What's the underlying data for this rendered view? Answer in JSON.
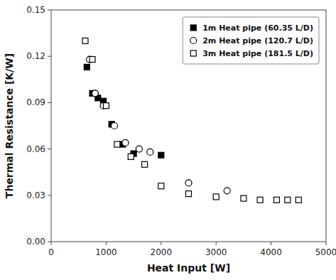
{
  "chart_data": {
    "type": "scatter",
    "xlabel": "Heat Input [W]",
    "ylabel": "Thermal Resistance [K/W]",
    "xlim": [
      0,
      5000
    ],
    "ylim": [
      0,
      0.15
    ],
    "xticks": [
      0,
      1000,
      2000,
      3000,
      4000,
      5000
    ],
    "yticks": [
      {
        "value": 0,
        "label": "0.00"
      },
      0.03,
      0.06,
      0.09,
      0.12,
      0.15
    ],
    "grid": false,
    "legend": "upper-right",
    "series": [
      {
        "name": "1m Heat pipe (60.35 L/D)",
        "color": "black",
        "marker": "filled-square",
        "x": [
          650,
          750,
          850,
          950,
          1100,
          1300,
          1500,
          2000
        ],
        "values": [
          0.113,
          0.096,
          0.093,
          0.091,
          0.076,
          0.063,
          0.057,
          0.056
        ]
      },
      {
        "name": "2m Heat pipe (120.7 L/D)",
        "color": "black",
        "marker": "open-circle",
        "x": [
          700,
          800,
          950,
          1150,
          1350,
          1600,
          1800,
          2500,
          3200
        ],
        "values": [
          0.118,
          0.096,
          0.088,
          0.075,
          0.064,
          0.06,
          0.058,
          0.038,
          0.033
        ]
      },
      {
        "name": "3m Heat pipe (181.5 L/D)",
        "color": "black",
        "marker": "open-square",
        "x": [
          620,
          750,
          1000,
          1200,
          1450,
          1700,
          2000,
          2500,
          3000,
          3500,
          3800,
          4100,
          4300,
          4500
        ],
        "values": [
          0.13,
          0.118,
          0.088,
          0.063,
          0.055,
          0.05,
          0.036,
          0.031,
          0.029,
          0.028,
          0.027,
          0.027,
          0.027,
          0.027
        ]
      }
    ]
  }
}
